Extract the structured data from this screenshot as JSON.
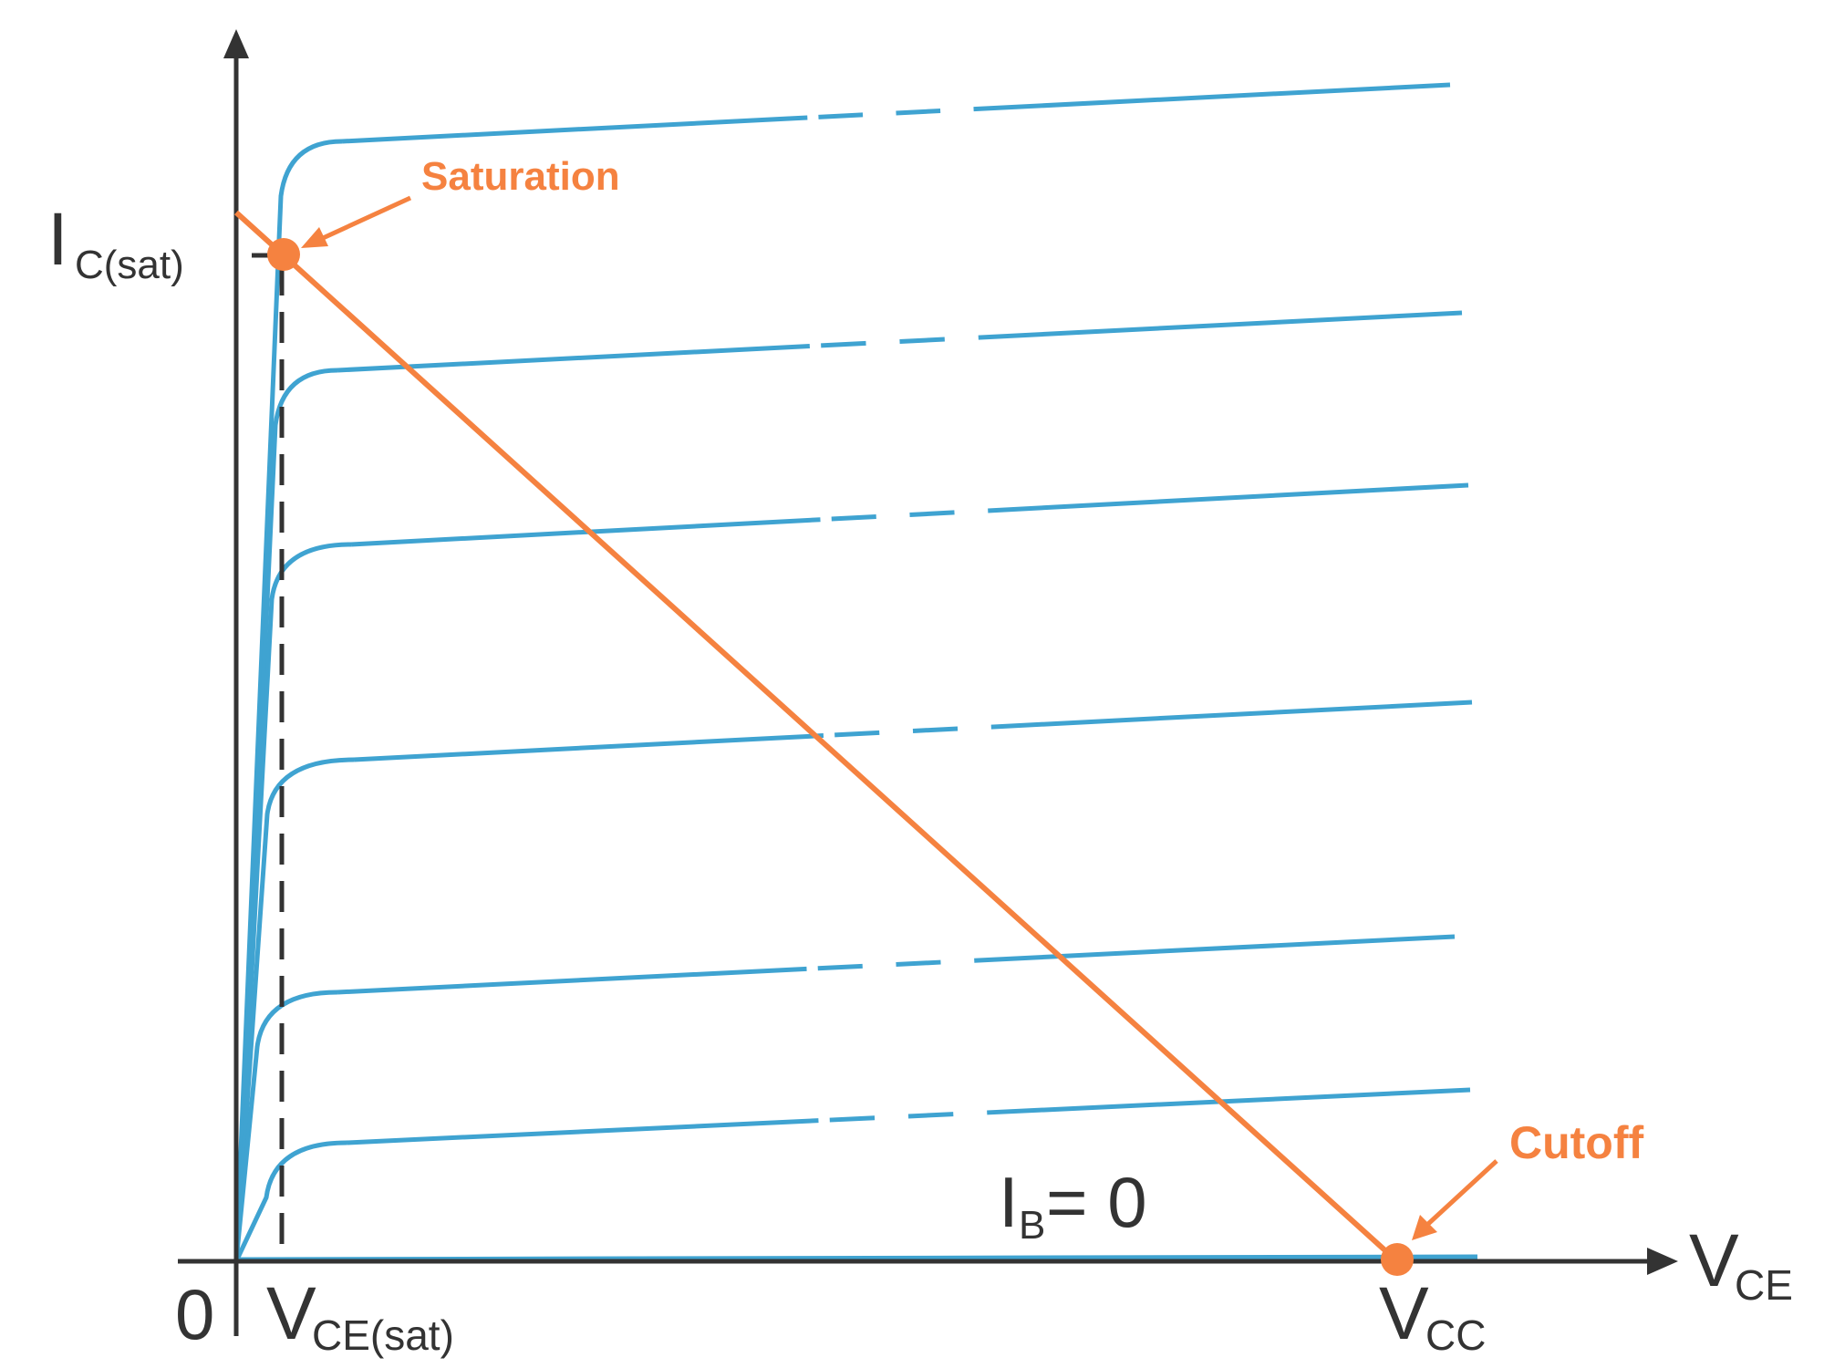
{
  "colors": {
    "axis": "#333333",
    "curves": "#3fa3d1",
    "load_line": "#f58240",
    "background": "#ffffff"
  },
  "labels": {
    "ic_sat_main": "I",
    "ic_sat_sub": "C(sat)",
    "vce_main": "V",
    "vce_sub": "CE",
    "origin": "0",
    "vce_sat_main": "V",
    "vce_sat_sub": "CE(sat)",
    "vcc_main": "V",
    "vcc_sub": "CC",
    "ib_zero_main": "I",
    "ib_zero_sub": "B",
    "ib_zero_rest": " = 0",
    "saturation": "Saturation",
    "cutoff": "Cutoff"
  },
  "curve_count": 7
}
